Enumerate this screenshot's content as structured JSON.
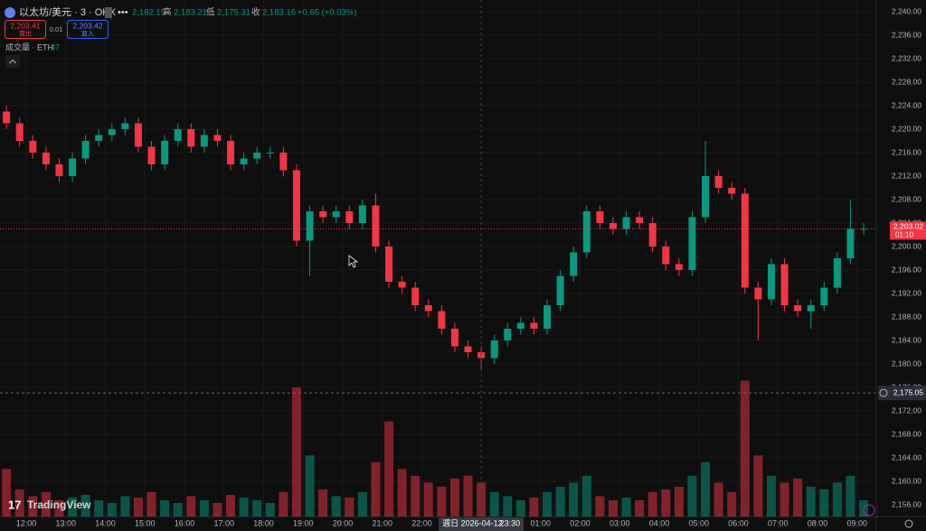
{
  "header": {
    "symbol": "以太坊/美元 · 3 · OKX",
    "open": "2,182.15",
    "high_label": "高",
    "high": "2,183.21",
    "low_label": "低",
    "low": "2,175.31",
    "close_label": "收",
    "close": "2,183.16",
    "change": "+0.65 (+0.03%)"
  },
  "trade": {
    "sell_price": "2,203.41",
    "sell": "賣出",
    "spread": "0.01",
    "buy_price": "2,203.42",
    "buy": "買入"
  },
  "volume_legend": {
    "label": "成交量 · ETH",
    "value": "47"
  },
  "logo": "TradingView",
  "chart_data": {
    "type": "candlestick",
    "up_color": "#089981",
    "down_color": "#f23645",
    "x": [
      "11:30",
      "11:50",
      "12:10",
      "12:30",
      "12:50",
      "13:10",
      "13:30",
      "13:50",
      "14:10",
      "14:30",
      "14:50",
      "15:10",
      "15:30",
      "15:50",
      "16:10",
      "16:30",
      "16:50",
      "17:10",
      "17:30",
      "17:50",
      "18:10",
      "18:30",
      "18:50",
      "19:10",
      "19:30",
      "19:50",
      "20:10",
      "20:30",
      "20:50",
      "21:10",
      "21:30",
      "21:50",
      "22:10",
      "22:30",
      "22:50",
      "23:10",
      "23:30",
      "23:50",
      "00:10",
      "00:30",
      "00:50",
      "01:10",
      "01:30",
      "01:50",
      "02:10",
      "02:30",
      "02:50",
      "03:10",
      "03:30",
      "03:50",
      "04:10",
      "04:30",
      "04:50",
      "05:10",
      "05:30",
      "05:50",
      "06:10",
      "06:30",
      "06:50",
      "07:10",
      "07:30",
      "07:50",
      "08:10",
      "08:30",
      "08:50",
      "09:10"
    ],
    "open": [
      2223,
      2221,
      2218,
      2216,
      2214,
      2212,
      2215,
      2218,
      2219,
      2220,
      2221,
      2217,
      2214,
      2218,
      2220,
      2217,
      2219,
      2218,
      2214,
      2215,
      2216,
      2216,
      2213,
      2201,
      2206,
      2205,
      2206,
      2204,
      2207,
      2200,
      2194,
      2193,
      2190,
      2189,
      2186,
      2183,
      2182,
      2181,
      2184,
      2186,
      2187,
      2186,
      2190,
      2195,
      2199,
      2206,
      2204,
      2203,
      2205,
      2204,
      2200,
      2197,
      2196,
      2205,
      2212,
      2210,
      2209,
      2193,
      2191,
      2197,
      2190,
      2189,
      2190,
      2193,
      2198,
      2203
    ],
    "high": [
      2224,
      2222,
      2219,
      2217,
      2215,
      2216,
      2219,
      2220,
      2221,
      2222,
      2222,
      2218,
      2219,
      2221,
      2221,
      2220,
      2220,
      2219,
      2216,
      2217,
      2217,
      2217,
      2214,
      2207,
      2207,
      2207,
      2207,
      2208,
      2209,
      2201,
      2195,
      2194,
      2191,
      2190,
      2187,
      2184,
      2183,
      2185,
      2187,
      2188,
      2188,
      2191,
      2196,
      2200,
      2207,
      2207,
      2205,
      2206,
      2206,
      2205,
      2201,
      2198,
      2206,
      2218,
      2213,
      2211,
      2210,
      2194,
      2198,
      2198,
      2191,
      2191,
      2194,
      2199,
      2208,
      2204
    ],
    "low": [
      2220,
      2217,
      2215,
      2213,
      2211,
      2211,
      2214,
      2217,
      2218,
      2219,
      2216,
      2213,
      2213,
      2217,
      2216,
      2216,
      2217,
      2213,
      2213,
      2214,
      2215,
      2212,
      2200,
      2195,
      2204,
      2204,
      2203,
      2203,
      2199,
      2193,
      2192,
      2189,
      2188,
      2185,
      2182,
      2181,
      2179,
      2180,
      2183,
      2185,
      2185,
      2185,
      2189,
      2194,
      2198,
      2203,
      2202,
      2202,
      2203,
      2199,
      2196,
      2195,
      2195,
      2204,
      2209,
      2208,
      2192,
      2184,
      2190,
      2189,
      2188,
      2186,
      2189,
      2192,
      2197,
      2202
    ],
    "close": [
      2221,
      2218,
      2216,
      2214,
      2212,
      2215,
      2218,
      2219,
      2220,
      2221,
      2217,
      2214,
      2218,
      2220,
      2217,
      2219,
      2218,
      2214,
      2215,
      2216,
      2216,
      2213,
      2201,
      2206,
      2205,
      2206,
      2204,
      2207,
      2200,
      2194,
      2193,
      2190,
      2189,
      2186,
      2183,
      2182,
      2181,
      2184,
      2186,
      2187,
      2186,
      2190,
      2195,
      2199,
      2206,
      2204,
      2203,
      2205,
      2204,
      2200,
      2197,
      2196,
      2205,
      2212,
      2210,
      2209,
      2193,
      2191,
      2197,
      2190,
      2189,
      2190,
      2193,
      2198,
      2203,
      2203.02
    ],
    "volume": [
      35,
      20,
      15,
      18,
      12,
      14,
      16,
      12,
      10,
      15,
      14,
      18,
      12,
      10,
      15,
      12,
      10,
      16,
      14,
      12,
      10,
      18,
      95,
      45,
      20,
      15,
      14,
      18,
      40,
      70,
      35,
      30,
      25,
      22,
      28,
      30,
      25,
      18,
      15,
      12,
      14,
      18,
      22,
      25,
      30,
      15,
      12,
      14,
      12,
      18,
      20,
      22,
      30,
      40,
      25,
      18,
      100,
      45,
      30,
      25,
      28,
      22,
      20,
      25,
      30,
      12
    ],
    "volume_ylim": [
      0,
      380
    ],
    "ylim": [
      2154,
      2242
    ],
    "yticks": [
      {
        "value": 2240,
        "label": "2,240.00"
      },
      {
        "value": 2236,
        "label": "2,236.00"
      },
      {
        "value": 2232,
        "label": "2,232.00"
      },
      {
        "value": 2228,
        "label": "2,228.00"
      },
      {
        "value": 2224,
        "label": "2,224.00"
      },
      {
        "value": 2220,
        "label": "2,220.00"
      },
      {
        "value": 2216,
        "label": "2,216.00"
      },
      {
        "value": 2212,
        "label": "2,212.00"
      },
      {
        "value": 2208,
        "label": "2,208.00"
      },
      {
        "value": 2204,
        "label": "2,204.00"
      },
      {
        "value": 2200,
        "label": "2,200.00"
      },
      {
        "value": 2196,
        "label": "2,196.00"
      },
      {
        "value": 2192,
        "label": "2,192.00"
      },
      {
        "value": 2188,
        "label": "2,188.00"
      },
      {
        "value": 2184,
        "label": "2,184.00"
      },
      {
        "value": 2180,
        "label": "2,180.00"
      },
      {
        "value": 2176,
        "label": "2,176.00"
      },
      {
        "value": 2172,
        "label": "2,172.00"
      },
      {
        "value": 2168,
        "label": "2,168.00"
      },
      {
        "value": 2164,
        "label": "2,164.00"
      },
      {
        "value": 2160,
        "label": "2,160.00"
      },
      {
        "value": 2156,
        "label": "2,156.00"
      }
    ],
    "xticks": [
      "12:00",
      "13:00",
      "14:00",
      "15:00",
      "16:00",
      "17:00",
      "18:00",
      "19:00",
      "20:00",
      "21:00",
      "22:00",
      "01:00",
      "02:00",
      "03:00",
      "04:00",
      "05:00",
      "06:00",
      "07:00",
      "08:00",
      "09:00"
    ],
    "last_price": {
      "value": 2203.02,
      "label": "2,203.02"
    },
    "countdown": "01:10",
    "crosshair": {
      "date": "週日 2026-04-12",
      "time": "23:30",
      "price": {
        "value": 2175.05,
        "label": "2,175.05"
      }
    }
  }
}
